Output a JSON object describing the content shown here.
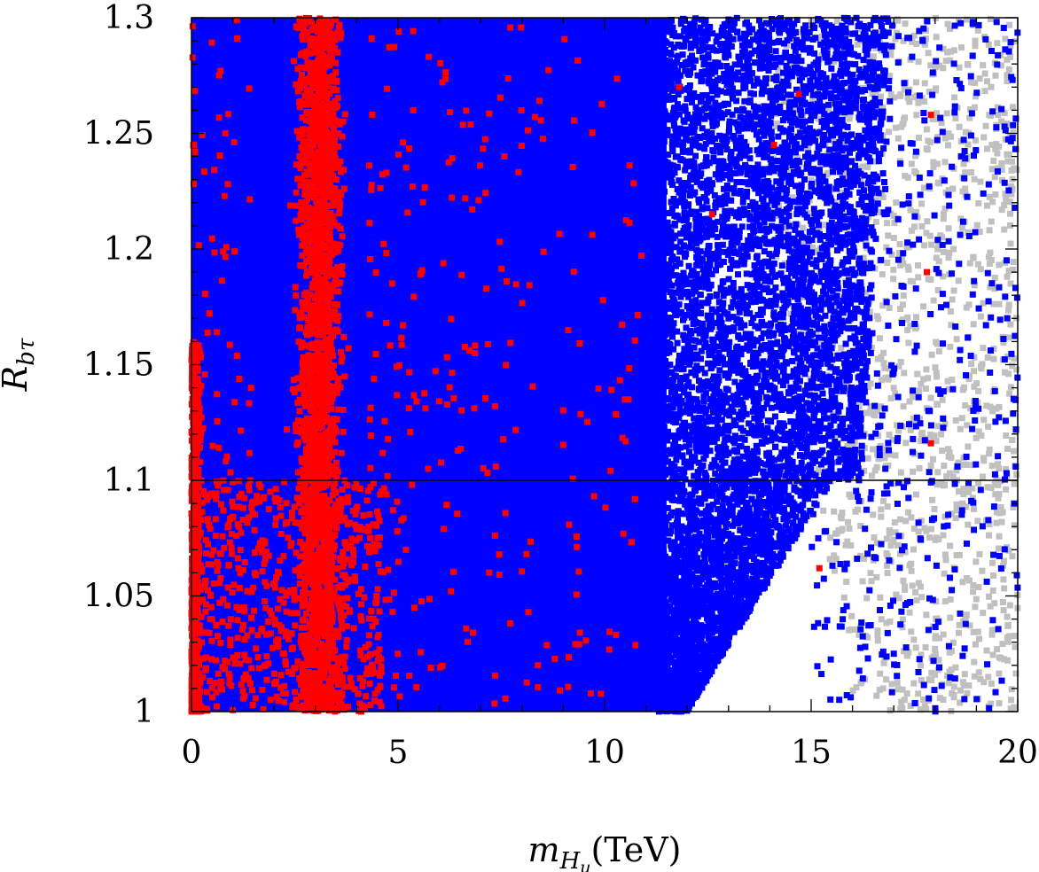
{
  "chart_data": {
    "type": "scatter",
    "title": "",
    "xlabel": "m_{H_u}(TeV)",
    "ylabel": "R_{bτ}",
    "xlim": [
      0,
      20
    ],
    "ylim": [
      1,
      1.3
    ],
    "x_ticks": [
      0,
      5,
      10,
      15,
      20
    ],
    "y_ticks": [
      1,
      1.05,
      1.1,
      1.15,
      1.2,
      1.25,
      1.3
    ],
    "x_tick_labels": [
      "0",
      "5",
      "10",
      "15",
      "20"
    ],
    "y_tick_labels": [
      "1",
      "1.05",
      "1.1",
      "1.15",
      "1.2",
      "1.25",
      "1.3"
    ],
    "reference_line_y": 1.1,
    "grid": false,
    "legend": "none",
    "series": [
      {
        "color": "#c0c0c0",
        "x_range": [
          14,
          20
        ],
        "y_range": [
          1,
          1.3
        ],
        "description_density": "sparse"
      },
      {
        "color": "#0000ff",
        "x_range": [
          0,
          20
        ],
        "y_range": [
          1,
          1.3
        ],
        "dense_until_x": 11.5
      },
      {
        "color": "#ff0000",
        "x_range": [
          0,
          18.5
        ],
        "y_range": [
          1,
          1.3
        ],
        "dense_band_x": [
          2,
          4.2
        ]
      }
    ],
    "colors": {
      "gray": "#c0c0c0",
      "blue": "#0000ff",
      "red": "#ff0000"
    }
  }
}
